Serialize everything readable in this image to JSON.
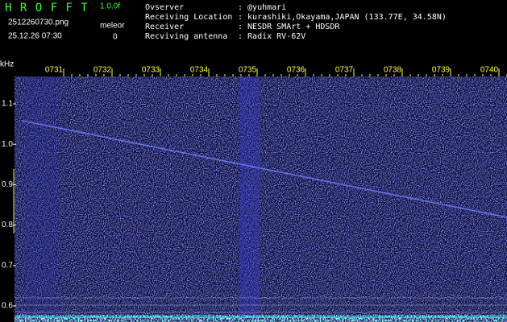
{
  "header": {
    "app": "H R O F F T",
    "version": "1.0.0f",
    "filename": "2512260730.png",
    "mode": "meleor",
    "datetime": "25.12.26 07:30",
    "count": "0"
  },
  "station": [
    {
      "label": "Ovserver",
      "value": ": @yuhmari"
    },
    {
      "label": "Receiving Location",
      "value": ": kurashiki,Okayama,JAPAN (133.77E, 34.58N)"
    },
    {
      "label": "Receiver",
      "value": ": NESDR SMArt + HDSDR"
    },
    {
      "label": "Recviving antenna",
      "value": ": Radix RV-62V"
    }
  ],
  "axis": {
    "unit": "kHz",
    "time_labels": [
      "0731",
      "0732",
      "0733",
      "0734",
      "0735",
      "0736",
      "0737",
      "0738",
      "0739",
      "0740"
    ],
    "freq_labels": [
      "1.1",
      "1.0",
      "0.9",
      "0.8",
      "0.7",
      "0.6"
    ]
  }
}
